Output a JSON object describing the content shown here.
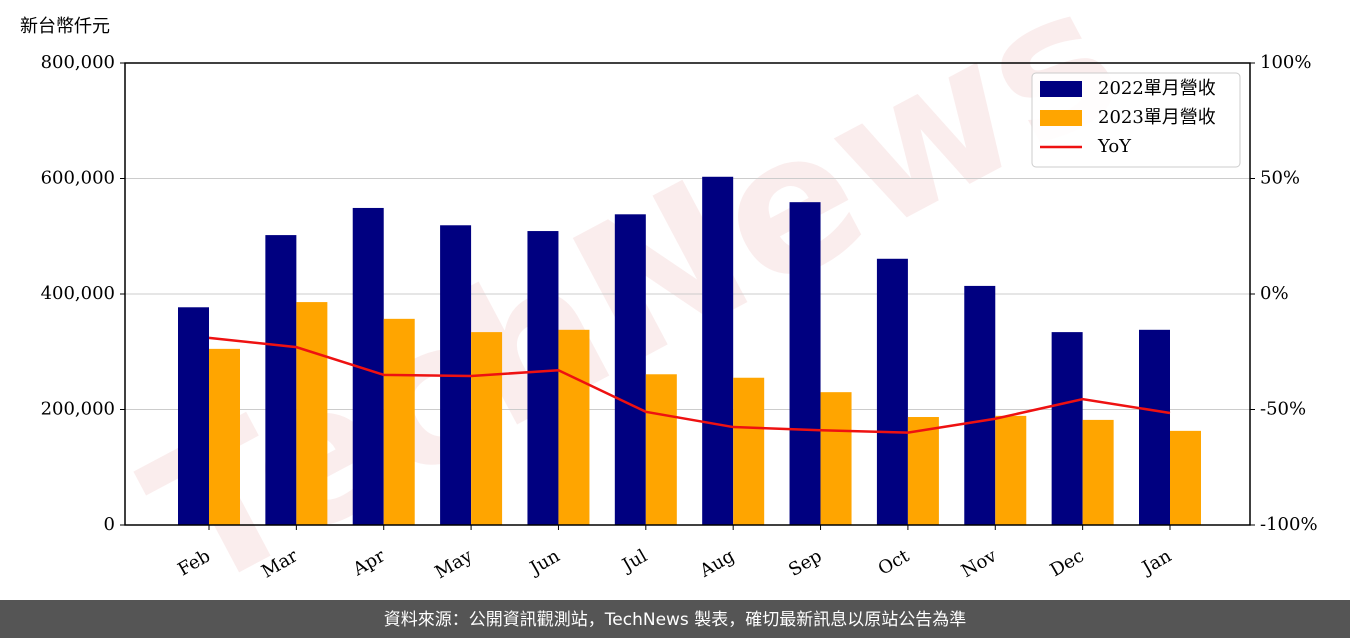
{
  "chart_data": {
    "type": "bar",
    "y_label": "新台幣仟元",
    "categories": [
      "Feb",
      "Mar",
      "Apr",
      "May",
      "Jun",
      "Jul",
      "Aug",
      "Sep",
      "Oct",
      "Nov",
      "Dec",
      "Jan"
    ],
    "series": [
      {
        "name": "2022單月營收",
        "color": "#000080",
        "values": [
          377000,
          502000,
          549000,
          519000,
          509000,
          538000,
          603000,
          559000,
          461000,
          414000,
          334000,
          338000
        ]
      },
      {
        "name": "2023單月營收",
        "color": "#ffa500",
        "values": [
          305000,
          386000,
          357000,
          334000,
          338000,
          261000,
          255000,
          230000,
          187000,
          189000,
          182000,
          163000
        ]
      },
      {
        "name": "YoY",
        "type": "line",
        "axis": "y2",
        "color": "#ee1111",
        "values": [
          -19,
          -23,
          -35,
          -35.5,
          -33,
          -51,
          -57.6,
          -59,
          -60,
          -54,
          -45.5,
          -51.5
        ]
      }
    ],
    "ylim": [
      0,
      800000
    ],
    "yticks": [
      0,
      {
        "value": 200000,
        "label": "200,000"
      },
      {
        "value": 400000,
        "label": "400,000"
      },
      {
        "value": 600000,
        "label": "600,000"
      },
      {
        "value": 800000,
        "label": "800,000"
      }
    ],
    "y2lim": [
      -100,
      100
    ],
    "y2ticks": [
      {
        "value": -100,
        "label": "-100%"
      },
      {
        "value": -50,
        "label": "-50%"
      },
      {
        "value": 0,
        "label": "0%"
      },
      {
        "value": 50,
        "label": "50%"
      },
      {
        "value": 100,
        "label": "100%"
      }
    ],
    "grid": true,
    "legend": "upper right",
    "watermark": "TechNews",
    "footer": "資料來源：公開資訊觀測站，TechNews 製表，確切最新訊息以原站公告為準"
  }
}
